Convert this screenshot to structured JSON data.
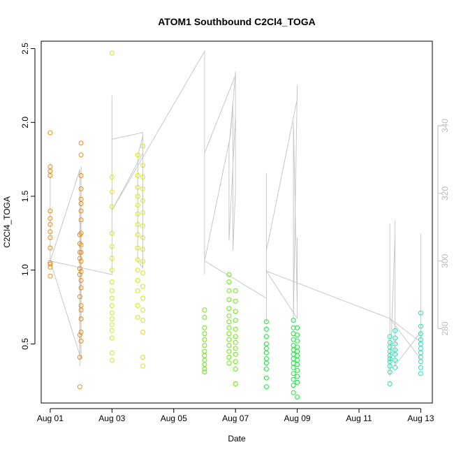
{
  "chart_data": {
    "type": "scatter",
    "title": "ATOM1 Southbound C2Cl4_TOGA",
    "xlabel": "Date",
    "ylabel": "C2Cl4_TOGA",
    "xlim": [
      "2016-07-31T17:00",
      "2016-08-13T09:00"
    ],
    "ylim": [
      0.1,
      2.55
    ],
    "y2lim": [
      258,
      365
    ],
    "x_ticks": [
      "2016-08-01",
      "2016-08-03",
      "2016-08-05",
      "2016-08-07",
      "2016-08-09",
      "2016-08-11",
      "2016-08-13"
    ],
    "x_tick_labels": [
      "Aug 01",
      "Aug 03",
      "Aug 05",
      "Aug 07",
      "Aug 09",
      "Aug 11",
      "Aug 13"
    ],
    "y_ticks": [
      0.5,
      1.0,
      1.5,
      2.0,
      2.5
    ],
    "y_tick_labels": [
      "0.5",
      "1.0",
      "1.5",
      "2.0",
      "2.5"
    ],
    "y2_ticks": [
      280,
      300,
      320,
      340
    ],
    "y2_tick_labels": [
      "280",
      "300",
      "320",
      "340"
    ],
    "grid": false,
    "legend": "none",
    "marker": "open-circle",
    "secondary_line_color": "#c8c8c8",
    "series": [
      {
        "color": "#f28a0e",
        "x": [
          "2016-08-01T00:00",
          "2016-08-01T00:00",
          "2016-08-01T00:00",
          "2016-08-01T00:00",
          "2016-08-01T00:00",
          "2016-08-01T00:00",
          "2016-08-01T00:00",
          "2016-08-01T00:00",
          "2016-08-01T00:00",
          "2016-08-01T00:00",
          "2016-08-01T00:00",
          "2016-08-01T00:00",
          "2016-08-01T00:00",
          "2016-08-01T00:00",
          "2016-08-01T23:00",
          "2016-08-01T23:00",
          "2016-08-01T23:00",
          "2016-08-01T23:00",
          "2016-08-01T23:00",
          "2016-08-01T23:00",
          "2016-08-01T23:00",
          "2016-08-01T23:00",
          "2016-08-01T23:00",
          "2016-08-01T23:00",
          "2016-08-02T00:00",
          "2016-08-02T00:00",
          "2016-08-02T00:00",
          "2016-08-02T00:00",
          "2016-08-02T00:00",
          "2016-08-02T00:00",
          "2016-08-02T00:00",
          "2016-08-02T00:00",
          "2016-08-02T00:00",
          "2016-08-02T00:00",
          "2016-08-02T00:00",
          "2016-08-02T00:00",
          "2016-08-02T00:00",
          "2016-08-02T00:00",
          "2016-08-02T00:00",
          "2016-08-02T00:00",
          "2016-08-02T00:00",
          "2016-08-02T00:00",
          "2016-08-02T00:00",
          "2016-08-02T00:00"
        ],
        "y": [
          1.93,
          1.7,
          1.67,
          1.64,
          1.4,
          1.35,
          1.31,
          1.26,
          1.22,
          1.15,
          1.05,
          1.02,
          0.96,
          1.04,
          1.24,
          1.18,
          1.12,
          1.08,
          1.01,
          0.97,
          0.82,
          0.56,
          0.41,
          0.21,
          1.86,
          1.78,
          1.64,
          1.55,
          1.48,
          1.45,
          1.4,
          1.34,
          1.25,
          1.17,
          1.12,
          1.06,
          0.99,
          0.93,
          0.88,
          0.76,
          0.73,
          0.67,
          0.58,
          0.52
        ]
      },
      {
        "color": "#d7e80e",
        "x": [
          "2016-08-03T00:00",
          "2016-08-03T00:00",
          "2016-08-03T00:00",
          "2016-08-03T00:00",
          "2016-08-03T00:00",
          "2016-08-03T00:00",
          "2016-08-03T00:00",
          "2016-08-03T00:00",
          "2016-08-03T00:00",
          "2016-08-03T00:00",
          "2016-08-03T00:00",
          "2016-08-03T00:00",
          "2016-08-03T00:00",
          "2016-08-03T00:00",
          "2016-08-03T00:00",
          "2016-08-03T00:00",
          "2016-08-03T00:00",
          "2016-08-03T00:00",
          "2016-08-03T00:00",
          "2016-08-03T20:00",
          "2016-08-03T20:00",
          "2016-08-03T20:00",
          "2016-08-03T20:00",
          "2016-08-03T20:00",
          "2016-08-03T20:00",
          "2016-08-03T20:00",
          "2016-08-03T20:00",
          "2016-08-03T20:00",
          "2016-08-03T20:00",
          "2016-08-03T20:00",
          "2016-08-03T20:00",
          "2016-08-03T20:00",
          "2016-08-03T20:00",
          "2016-08-03T20:00",
          "2016-08-04T00:00",
          "2016-08-04T00:00",
          "2016-08-04T00:00",
          "2016-08-04T00:00",
          "2016-08-04T00:00",
          "2016-08-04T00:00",
          "2016-08-04T00:00",
          "2016-08-04T00:00",
          "2016-08-04T00:00",
          "2016-08-04T00:00",
          "2016-08-04T00:00",
          "2016-08-04T00:00",
          "2016-08-04T00:00",
          "2016-08-04T00:00",
          "2016-08-04T00:00",
          "2016-08-04T00:00",
          "2016-08-04T00:00",
          "2016-08-04T00:00"
        ],
        "y": [
          2.47,
          1.63,
          1.53,
          1.43,
          1.25,
          1.16,
          1.08,
          1.0,
          0.92,
          0.86,
          0.81,
          0.76,
          0.71,
          0.67,
          0.63,
          0.59,
          0.54,
          0.44,
          0.39,
          1.78,
          1.64,
          1.56,
          1.5,
          1.44,
          1.38,
          1.31,
          1.24,
          1.15,
          1.07,
          1.0,
          0.93,
          0.86,
          0.76,
          0.68,
          1.84,
          1.71,
          1.63,
          1.55,
          1.47,
          1.39,
          1.3,
          1.22,
          1.14,
          1.06,
          0.98,
          0.89,
          0.81,
          0.73,
          0.66,
          0.58,
          0.41,
          0.35
        ]
      },
      {
        "color": "#66e80c",
        "x": [
          "2016-08-06T00:00",
          "2016-08-06T00:00",
          "2016-08-06T00:00",
          "2016-08-06T00:00",
          "2016-08-06T00:00",
          "2016-08-06T00:00",
          "2016-08-06T00:00",
          "2016-08-06T00:00",
          "2016-08-06T00:00",
          "2016-08-06T00:00",
          "2016-08-06T00:00",
          "2016-08-06T00:00",
          "2016-08-06T19:00",
          "2016-08-06T19:00",
          "2016-08-06T19:00",
          "2016-08-06T19:00",
          "2016-08-06T19:00",
          "2016-08-06T19:00",
          "2016-08-06T19:00",
          "2016-08-06T19:00",
          "2016-08-06T19:00",
          "2016-08-06T19:00",
          "2016-08-06T19:00",
          "2016-08-06T19:00",
          "2016-08-06T19:00",
          "2016-08-06T19:00",
          "2016-08-07T00:00",
          "2016-08-07T00:00",
          "2016-08-07T00:00",
          "2016-08-07T00:00",
          "2016-08-07T00:00",
          "2016-08-07T00:00",
          "2016-08-07T00:00",
          "2016-08-07T00:00",
          "2016-08-07T00:00",
          "2016-08-07T00:00",
          "2016-08-07T00:00",
          "2016-08-07T00:00"
        ],
        "y": [
          0.73,
          0.68,
          0.61,
          0.57,
          0.53,
          0.49,
          0.45,
          0.42,
          0.39,
          0.36,
          0.33,
          0.31,
          0.97,
          0.92,
          0.86,
          0.8,
          0.74,
          0.69,
          0.65,
          0.61,
          0.57,
          0.53,
          0.49,
          0.45,
          0.41,
          0.37,
          0.86,
          0.79,
          0.72,
          0.66,
          0.6,
          0.55,
          0.51,
          0.47,
          0.43,
          0.38,
          0.33,
          0.23
        ]
      },
      {
        "color": "#12e835",
        "x": [
          "2016-08-08T00:00",
          "2016-08-08T00:00",
          "2016-08-08T00:00",
          "2016-08-08T00:00",
          "2016-08-08T00:00",
          "2016-08-08T00:00",
          "2016-08-08T00:00",
          "2016-08-08T00:00",
          "2016-08-08T00:00",
          "2016-08-08T00:00",
          "2016-08-08T00:00",
          "2016-08-08T21:00",
          "2016-08-08T21:00",
          "2016-08-08T21:00",
          "2016-08-08T21:00",
          "2016-08-08T21:00",
          "2016-08-08T21:00",
          "2016-08-08T21:00",
          "2016-08-08T21:00",
          "2016-08-08T21:00",
          "2016-08-08T21:00",
          "2016-08-08T21:00",
          "2016-08-08T21:00",
          "2016-08-08T21:00",
          "2016-08-08T21:00",
          "2016-08-09T00:00",
          "2016-08-09T00:00",
          "2016-08-09T00:00",
          "2016-08-09T00:00",
          "2016-08-09T00:00",
          "2016-08-09T00:00",
          "2016-08-09T00:00",
          "2016-08-09T00:00",
          "2016-08-09T00:00",
          "2016-08-09T00:00",
          "2016-08-09T00:00",
          "2016-08-09T00:00"
        ],
        "y": [
          0.65,
          0.6,
          0.55,
          0.5,
          0.47,
          0.44,
          0.4,
          0.37,
          0.33,
          0.27,
          0.21,
          0.66,
          0.61,
          0.57,
          0.53,
          0.49,
          0.46,
          0.43,
          0.4,
          0.37,
          0.34,
          0.3,
          0.26,
          0.22,
          0.17,
          0.61,
          0.56,
          0.52,
          0.48,
          0.45,
          0.42,
          0.39,
          0.36,
          0.32,
          0.28,
          0.24,
          0.14
        ]
      },
      {
        "color": "#1ae8b0",
        "x": [
          "2016-08-12T00:00",
          "2016-08-12T00:00",
          "2016-08-12T00:00",
          "2016-08-12T00:00",
          "2016-08-12T00:00",
          "2016-08-12T00:00",
          "2016-08-12T00:00",
          "2016-08-12T00:00",
          "2016-08-12T00:00",
          "2016-08-12T00:00",
          "2016-08-12T04:00",
          "2016-08-12T04:00",
          "2016-08-12T04:00",
          "2016-08-12T04:00",
          "2016-08-12T04:00",
          "2016-08-12T04:00",
          "2016-08-12T04:00",
          "2016-08-13T00:00",
          "2016-08-13T00:00",
          "2016-08-13T00:00",
          "2016-08-13T00:00",
          "2016-08-13T00:00",
          "2016-08-13T00:00",
          "2016-08-13T00:00",
          "2016-08-13T00:00",
          "2016-08-13T00:00",
          "2016-08-13T00:00",
          "2016-08-13T00:00"
        ],
        "y": [
          0.55,
          0.51,
          0.48,
          0.45,
          0.42,
          0.4,
          0.38,
          0.35,
          0.31,
          0.23,
          0.59,
          0.54,
          0.5,
          0.46,
          0.43,
          0.39,
          0.34,
          0.71,
          0.62,
          0.57,
          0.53,
          0.5,
          0.47,
          0.44,
          0.41,
          0.38,
          0.34,
          0.3
        ]
      }
    ],
    "secondary_series": {
      "color": "#c8c8c8",
      "x": [
        "2016-08-01T00:00",
        "2016-08-01T00:00",
        "2016-08-01T23:00",
        "2016-08-01T23:00",
        "2016-08-02T00:00",
        "2016-08-02T00:00",
        "2016-08-02T00:00",
        "2016-08-02T00:00",
        "2016-08-01T00:00",
        "2016-08-03T00:00",
        "2016-08-03T00:00",
        "2016-08-03T00:00",
        "2016-08-03T00:00",
        "2016-08-03T00:00",
        "2016-08-04T00:00",
        "2016-08-04T00:00",
        "2016-08-03T20:00",
        "2016-08-03T20:00",
        "2016-08-04T00:00",
        "2016-08-04T00:00",
        "2016-08-04T00:00",
        "2016-08-03T00:00",
        "2016-08-06T00:00",
        "2016-08-06T00:00",
        "2016-08-06T00:00",
        "2016-08-06T00:00",
        "2016-08-06T00:00",
        "2016-08-06T00:00",
        "2016-08-07T00:00",
        "2016-08-07T00:00",
        "2016-08-06T19:00",
        "2016-08-06T19:00",
        "2016-08-06T19:00",
        "2016-08-06T22:00",
        "2016-08-06T22:00",
        "2016-08-07T00:00",
        "2016-08-07T00:00",
        "2016-08-06T20:00",
        "2016-08-06T00:00",
        "2016-08-08T00:00",
        "2016-08-08T00:00",
        "2016-08-08T00:00",
        "2016-08-08T00:00",
        "2016-08-08T00:00",
        "2016-08-08T00:00",
        "2016-08-09T00:00",
        "2016-08-09T00:00",
        "2016-08-08T21:00",
        "2016-08-08T21:00",
        "2016-08-09T00:00",
        "2016-08-09T00:00",
        "2016-08-09T00:00",
        "2016-08-08T00:00",
        "2016-08-12T00:00",
        "2016-08-12T00:00",
        "2016-08-12T00:00",
        "2016-08-12T04:00",
        "2016-08-12T04:00",
        "2016-08-12T04:00",
        "2016-08-12T04:00",
        "2016-08-13T00:00",
        "2016-08-13T00:00",
        "2016-08-13T00:00",
        "2016-08-13T00:00",
        "2016-08-12T00:00",
        "2016-08-13T00:00"
      ],
      "y": [
        329,
        300,
        327,
        269,
        328,
        322,
        298,
        271,
        300,
        296,
        340,
        349,
        345,
        336,
        338,
        298,
        300,
        331,
        337,
        329,
        332,
        315,
        362,
        296,
        305,
        321,
        306,
        332,
        355,
        343,
        306,
        321,
        334,
        347,
        303,
        321,
        356,
        337,
        300,
        289,
        326,
        294,
        282,
        296,
        303,
        348,
        352,
        283,
        341,
        286,
        307,
        283,
        297,
        283,
        311,
        266,
        308,
        312,
        283,
        269,
        279,
        285,
        308,
        276,
        283,
        271
      ]
    }
  }
}
